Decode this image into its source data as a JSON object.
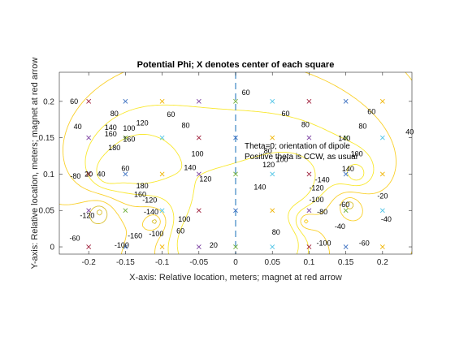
{
  "chart_data": {
    "type": "contour",
    "title": "Potential Phi;  X denotes center of each square",
    "xlabel": "X-axis: Relative location, meters;  magnet at red arrow",
    "ylabel": "Y-axis: Relative location, meters;  magnet at red arrow",
    "xlim": [
      -0.24,
      0.24
    ],
    "ylim": [
      -0.01,
      0.24
    ],
    "xticks": [
      -0.2,
      -0.15,
      -0.1,
      -0.05,
      0,
      0.05,
      0.1,
      0.15,
      0.2
    ],
    "xtick_labels": [
      "-0.2",
      "-0.15",
      "-0.1",
      "-0.05",
      "0",
      "0.05",
      "0.1",
      "0.15",
      "0.2"
    ],
    "yticks": [
      0,
      0.05,
      0.1,
      0.15,
      0.2
    ],
    "ytick_labels": [
      "0",
      "0.05",
      "0.1",
      "0.15",
      "0.2"
    ],
    "grid": false,
    "annotations": [
      {
        "text": "Theta=0; orientation of dipole",
        "x": 0.012,
        "y": 0.137
      },
      {
        "text": "Positive theta is CCW, as usual",
        "x": 0.012,
        "y": 0.125
      }
    ],
    "dashed_line": {
      "x": 0,
      "color": "#4a90c8"
    },
    "centers": {
      "x": [
        -0.2,
        -0.15,
        -0.1,
        -0.05,
        0,
        0.05,
        0.1,
        0.15,
        0.2
      ],
      "y": [
        0,
        0.05,
        0.1,
        0.15,
        0.2
      ],
      "marker": "x",
      "colors": [
        "#a0203c",
        "#3a6fc0",
        "#f0b400",
        "#7b3fa0",
        "#6fae3a",
        "#4cc3e6"
      ]
    },
    "contour_levels": [
      -160,
      -140,
      -120,
      -100,
      -80,
      -60,
      -40,
      -20,
      0,
      20,
      40,
      60,
      80,
      100,
      120,
      140,
      160,
      180
    ],
    "colormap": [
      "#3b2f9a",
      "#2c5fd6",
      "#1f8fd1",
      "#17b2b8",
      "#4cc47f",
      "#9fcb48",
      "#d9c030",
      "#fad02a",
      "#f9e830"
    ],
    "contour_labels": [
      {
        "text": "60",
        "x": -0.22,
        "y": 0.2
      },
      {
        "text": "80",
        "x": -0.165,
        "y": 0.183
      },
      {
        "text": "100",
        "x": -0.145,
        "y": 0.163
      },
      {
        "text": "120",
        "x": -0.127,
        "y": 0.17
      },
      {
        "text": "140",
        "x": -0.17,
        "y": 0.164
      },
      {
        "text": "160",
        "x": -0.17,
        "y": 0.155
      },
      {
        "text": "180",
        "x": -0.165,
        "y": 0.136
      },
      {
        "text": "160",
        "x": -0.145,
        "y": 0.148
      },
      {
        "text": "40",
        "x": -0.215,
        "y": 0.165
      },
      {
        "text": "60",
        "x": -0.15,
        "y": 0.108
      },
      {
        "text": "40",
        "x": -0.183,
        "y": 0.1
      },
      {
        "text": "20",
        "x": -0.2,
        "y": 0.1
      },
      {
        "text": "-120",
        "x": -0.202,
        "y": 0.043
      },
      {
        "text": "-100",
        "x": -0.155,
        "y": 0.002
      },
      {
        "text": "-60",
        "x": -0.219,
        "y": 0.012
      },
      {
        "text": "-80",
        "x": -0.218,
        "y": 0.097
      },
      {
        "text": "-100",
        "x": -0.108,
        "y": 0.018
      },
      {
        "text": "-120",
        "x": -0.117,
        "y": 0.064
      },
      {
        "text": "-140",
        "x": -0.115,
        "y": 0.048
      },
      {
        "text": "-160",
        "x": -0.137,
        "y": 0.015
      },
      {
        "text": "160",
        "x": -0.13,
        "y": 0.072
      },
      {
        "text": "180",
        "x": -0.127,
        "y": 0.084
      },
      {
        "text": "60",
        "x": -0.075,
        "y": 0.022
      },
      {
        "text": "100",
        "x": -0.07,
        "y": 0.038
      },
      {
        "text": "20",
        "x": -0.03,
        "y": 0.002
      },
      {
        "text": "60",
        "x": -0.088,
        "y": 0.182
      },
      {
        "text": "80",
        "x": -0.068,
        "y": 0.167
      },
      {
        "text": "100",
        "x": -0.052,
        "y": 0.128
      },
      {
        "text": "120",
        "x": -0.041,
        "y": 0.093
      },
      {
        "text": "140",
        "x": -0.062,
        "y": 0.109
      },
      {
        "text": "60",
        "x": 0.068,
        "y": 0.183
      },
      {
        "text": "80",
        "x": 0.095,
        "y": 0.168
      },
      {
        "text": "80",
        "x": 0.044,
        "y": 0.132
      },
      {
        "text": "100",
        "x": 0.063,
        "y": 0.12
      },
      {
        "text": "120",
        "x": 0.045,
        "y": 0.113
      },
      {
        "text": "140",
        "x": 0.033,
        "y": 0.082
      },
      {
        "text": "140",
        "x": 0.148,
        "y": 0.149
      },
      {
        "text": "80",
        "x": 0.055,
        "y": 0.02
      },
      {
        "text": "-80",
        "x": 0.118,
        "y": 0.048
      },
      {
        "text": "-100",
        "x": 0.11,
        "y": 0.065
      },
      {
        "text": "-120",
        "x": 0.11,
        "y": 0.081
      },
      {
        "text": "-140",
        "x": 0.118,
        "y": 0.092
      },
      {
        "text": "-100",
        "x": 0.12,
        "y": 0.005
      },
      {
        "text": "-40",
        "x": 0.142,
        "y": 0.028
      },
      {
        "text": "-60",
        "x": 0.148,
        "y": 0.058
      },
      {
        "text": "-20",
        "x": 0.2,
        "y": 0.07
      },
      {
        "text": "-40",
        "x": 0.205,
        "y": 0.038
      },
      {
        "text": "-60",
        "x": 0.175,
        "y": 0.005
      },
      {
        "text": "40",
        "x": 0.237,
        "y": 0.158
      },
      {
        "text": "60",
        "x": 0.185,
        "y": 0.186
      },
      {
        "text": "80",
        "x": 0.173,
        "y": 0.166
      },
      {
        "text": "140",
        "x": 0.153,
        "y": 0.107
      },
      {
        "text": "100",
        "x": 0.165,
        "y": 0.128
      },
      {
        "text": "60",
        "x": 0.014,
        "y": 0.212
      }
    ]
  }
}
